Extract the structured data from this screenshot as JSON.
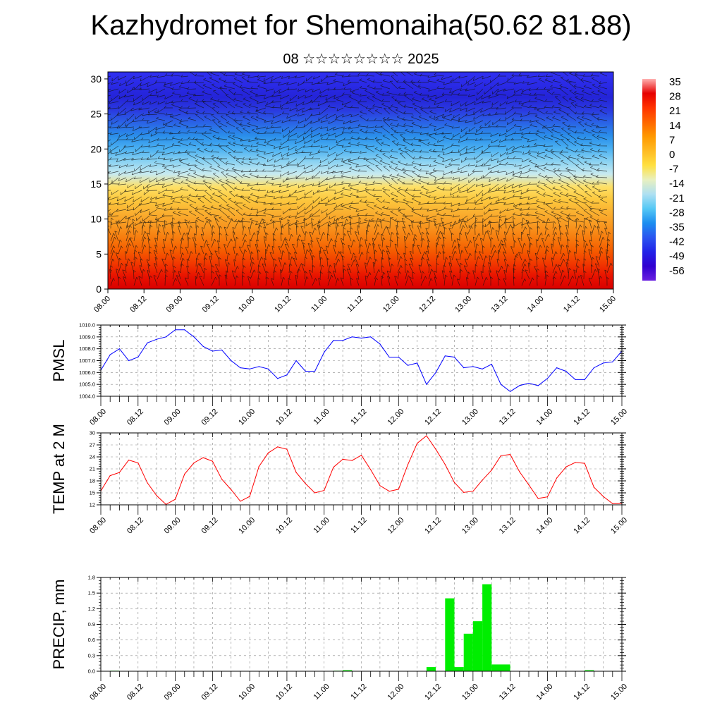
{
  "header": {
    "title": "Kazhydromet for Shemonaiha(50.62 81.88)",
    "subtitle": "08 ☆☆☆☆☆☆☆☆ 2025"
  },
  "colors": {
    "pmsl_line": "#0000ff",
    "temp_line": "#ff0000",
    "precip_bar": "#00ee00"
  },
  "time_ticks": [
    "08.00",
    "08.12",
    "09.00",
    "09.12",
    "10.00",
    "10.12",
    "11.00",
    "11.12",
    "12.00",
    "12.12",
    "13.00",
    "13.12",
    "14.00",
    "14.12",
    "15.00"
  ],
  "chart_data": [
    {
      "type": "heatmap",
      "name": "vertical-section",
      "y_ticks": [
        "0",
        "5",
        "10",
        "15",
        "20",
        "25",
        "30"
      ],
      "ylim": [
        0,
        31
      ],
      "colorbar": {
        "labels": [
          "35",
          "28",
          "21",
          "14",
          "7",
          "0",
          "-7",
          "-14",
          "-21",
          "-28",
          "-35",
          "-42",
          "-49",
          "-56"
        ],
        "colors": [
          "#ffb0b0",
          "#e60000",
          "#ff3300",
          "#ff6600",
          "#ff9900",
          "#ffbb22",
          "#ffe040",
          "#e8f0c0",
          "#aee0f2",
          "#55c8f5",
          "#1c8ef0",
          "#2a55f0",
          "#2222e8",
          "#3000d0",
          "#6a20e0"
        ]
      },
      "row_colors": [
        "#d90000",
        "#e81200",
        "#f23800",
        "#f55c00",
        "#f77c0e",
        "#f89820",
        "#fab030",
        "#fcc83e",
        "#fee066",
        "#c8eaf0",
        "#8ad2f2",
        "#4ab0f2",
        "#2a8eea",
        "#2a64e6",
        "#2a3ae0",
        "#2424d8",
        "#2a2ae6",
        "#3030f0"
      ]
    },
    {
      "type": "line",
      "name": "PMSL",
      "ylabel": "PMSL",
      "y_ticks": [
        "1004.0",
        "1005.0",
        "1006.0",
        "1007.0",
        "1008.0",
        "1009.0",
        "1010.0"
      ],
      "ylim": [
        1004.0,
        1010.0
      ],
      "x_step_hours": 3,
      "values": [
        1006.2,
        1007.5,
        1008.0,
        1007.0,
        1007.3,
        1008.5,
        1008.8,
        1009.0,
        1009.6,
        1009.6,
        1009.0,
        1008.2,
        1007.8,
        1007.9,
        1007.0,
        1006.4,
        1006.3,
        1006.5,
        1006.3,
        1005.5,
        1005.8,
        1007.0,
        1006.1,
        1006.1,
        1007.7,
        1008.7,
        1008.7,
        1009.0,
        1008.9,
        1009.0,
        1008.4,
        1007.3,
        1007.3,
        1006.6,
        1006.8,
        1005.0,
        1006.0,
        1007.4,
        1007.3,
        1006.4,
        1006.5,
        1006.3,
        1006.7,
        1005.0,
        1004.4,
        1004.9,
        1005.1,
        1004.9,
        1005.5,
        1006.4,
        1006.1,
        1005.4,
        1005.4,
        1006.4,
        1006.8,
        1006.9,
        1007.8
      ]
    },
    {
      "type": "line",
      "name": "TEMP at 2 M",
      "ylabel": "TEMP at 2 M",
      "y_ticks": [
        "12",
        "15",
        "18",
        "21",
        "24",
        "27",
        "30"
      ],
      "ylim": [
        12,
        30
      ],
      "x_step_hours": 3,
      "values": [
        15.5,
        19.3,
        20.1,
        23.2,
        22.5,
        17.5,
        14.3,
        12.1,
        13.4,
        19.7,
        22.5,
        23.8,
        22.9,
        18.4,
        15.8,
        12.9,
        14.1,
        21.6,
        25.0,
        26.5,
        25.9,
        20.1,
        17.3,
        15.0,
        15.6,
        21.4,
        23.4,
        23.1,
        24.4,
        20.8,
        16.8,
        15.4,
        15.9,
        22.1,
        27.4,
        29.3,
        25.9,
        22.1,
        17.6,
        15.1,
        15.4,
        18.2,
        20.7,
        24.3,
        24.6,
        20.3,
        17.0,
        13.6,
        14.0,
        18.7,
        21.5,
        22.6,
        22.4,
        16.4,
        14.1,
        12.3,
        12.3
      ]
    },
    {
      "type": "bar",
      "name": "PRECIP",
      "ylabel": "PRECIP, mm",
      "y_ticks": [
        "0.0",
        "0.3",
        "0.6",
        "0.9",
        "1.2",
        "1.5",
        "1.8"
      ],
      "ylim": [
        0,
        1.8
      ],
      "x_step_hours": 3,
      "values": [
        0,
        0.01,
        0,
        0,
        0,
        0,
        0,
        0,
        0,
        0,
        0,
        0,
        0,
        0,
        0,
        0,
        0,
        0,
        0,
        0,
        0,
        0,
        0,
        0,
        0,
        0.01,
        0.02,
        0,
        0,
        0,
        0,
        0,
        0,
        0,
        0,
        0.08,
        0,
        1.4,
        0.08,
        0.72,
        0.96,
        1.67,
        0.13,
        0.13,
        0,
        0,
        0,
        0,
        0,
        0,
        0,
        0,
        0.02,
        0,
        0,
        0
      ]
    }
  ]
}
